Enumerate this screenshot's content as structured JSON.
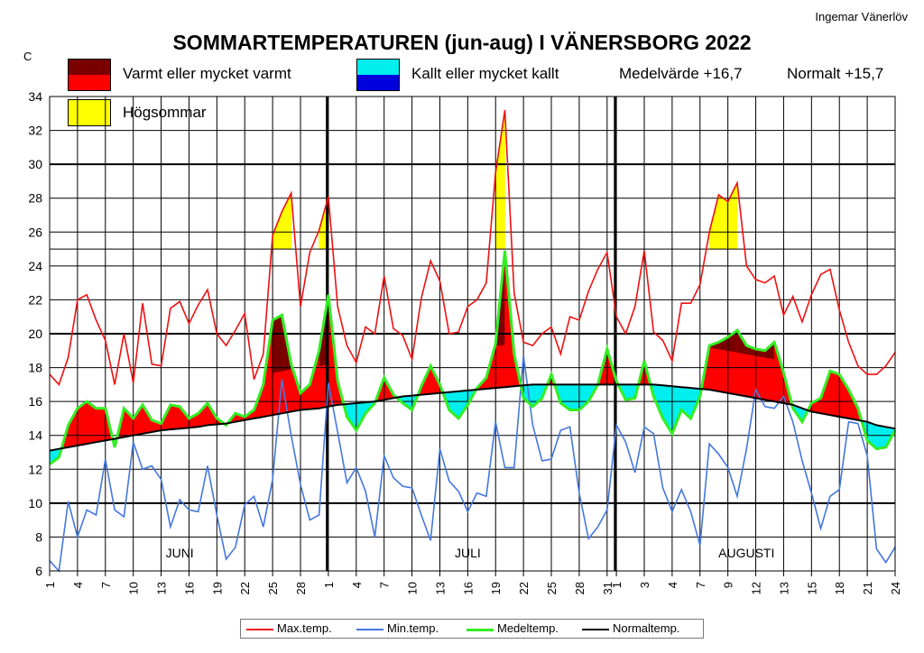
{
  "title": "SOMMARTEMPERATUREN (jun-aug) I VÄNERSBORG 2022",
  "author": "Ingemar Vänerlöv",
  "unit": "C",
  "legend_top": {
    "warm_label": "Varmt eller mycket varmt",
    "cold_label": "Kallt eller mycket kallt",
    "summer_label": "Högsommar",
    "mean_text": "Medelvärde +16,7",
    "normal_text": "Normalt +15,7"
  },
  "legend_bottom": {
    "max": "Max.temp.",
    "min": "Min.temp.",
    "mean": "Medeltemp.",
    "normal": "Normaltemp."
  },
  "colors": {
    "max": "#ee1111",
    "min": "#4477dd",
    "mean": "#33ee22",
    "normal": "#000000",
    "warm": "#ff0000",
    "very_warm": "#7a0000",
    "cold": "#00eeee",
    "very_cold": "#0000dd",
    "summer": "#ffff00"
  },
  "chart_data": {
    "type": "line",
    "ylim": [
      6,
      34
    ],
    "yticks": [
      6,
      8,
      10,
      12,
      14,
      16,
      18,
      20,
      22,
      24,
      26,
      28,
      30,
      32,
      34
    ],
    "days": 92,
    "month_labels": [
      "JUNI",
      "JULI",
      "AUGUSTI"
    ],
    "x_tick_labels": [
      {
        "day": 1,
        "label": "1"
      },
      {
        "day": 4,
        "label": "4"
      },
      {
        "day": 7,
        "label": "7"
      },
      {
        "day": 10,
        "label": "10"
      },
      {
        "day": 13,
        "label": "13"
      },
      {
        "day": 16,
        "label": "16"
      },
      {
        "day": 19,
        "label": "19"
      },
      {
        "day": 22,
        "label": "22"
      },
      {
        "day": 25,
        "label": "25"
      },
      {
        "day": 28,
        "label": "28"
      },
      {
        "day": 31,
        "label": "1"
      },
      {
        "day": 34,
        "label": "4"
      },
      {
        "day": 37,
        "label": "7"
      },
      {
        "day": 40,
        "label": "10"
      },
      {
        "day": 43,
        "label": "13"
      },
      {
        "day": 46,
        "label": "16"
      },
      {
        "day": 49,
        "label": "19"
      },
      {
        "day": 52,
        "label": "22"
      },
      {
        "day": 55,
        "label": "25"
      },
      {
        "day": 58,
        "label": "28"
      },
      {
        "day": 61,
        "label": "31"
      },
      {
        "day": 62,
        "label": "1"
      },
      {
        "day": 65,
        "label": "3"
      },
      {
        "day": 68,
        "label": "4"
      },
      {
        "day": 71,
        "label": "7"
      },
      {
        "day": 74,
        "label": "9"
      },
      {
        "day": 77,
        "label": "12"
      },
      {
        "day": 80,
        "label": "13"
      },
      {
        "day": 83,
        "label": "15"
      },
      {
        "day": 86,
        "label": "18"
      },
      {
        "day": 89,
        "label": "21"
      },
      {
        "day": 92,
        "label": "24"
      }
    ],
    "series": [
      {
        "name": "Max.temp.",
        "values": [
          17.6,
          17.0,
          18.6,
          22.0,
          22.3,
          20.8,
          19.6,
          17.0,
          20.0,
          17.1,
          21.8,
          18.2,
          18.1,
          21.5,
          21.9,
          20.6,
          21.7,
          22.6,
          20.0,
          19.3,
          20.2,
          21.2,
          17.3,
          18.8,
          25.8,
          27.2,
          28.3,
          21.6,
          24.8,
          26.1,
          28.1,
          21.6,
          19.3,
          18.3,
          20.4,
          20.0,
          23.4,
          20.3,
          19.9,
          18.5,
          22.1,
          24.3,
          23.1,
          20.0,
          20.1,
          21.6,
          22.0,
          23.0,
          29.5,
          33.2,
          22.4,
          19.5,
          19.3,
          20.0,
          20.4,
          18.8,
          21.0,
          20.8,
          22.5,
          23.8,
          24.8,
          21.0,
          20.0,
          21.6,
          24.9,
          20.1,
          19.6,
          18.4,
          21.8,
          21.8,
          22.9,
          26.0,
          28.2,
          27.8,
          28.9,
          24.0,
          23.2,
          23.0,
          23.4,
          21.1,
          22.2,
          20.7,
          22.3,
          23.5,
          23.8,
          21.4,
          19.5,
          18.1,
          17.6,
          17.6,
          18.1,
          18.9
        ]
      },
      {
        "name": "Min.temp.",
        "values": [
          6.6,
          6.0,
          10.1,
          8.0,
          9.6,
          9.3,
          12.6,
          9.6,
          9.2,
          13.6,
          12.0,
          12.2,
          11.4,
          8.6,
          10.2,
          9.6,
          9.5,
          12.2,
          9.3,
          6.7,
          7.4,
          9.9,
          10.4,
          8.6,
          11.4,
          17.3,
          14.0,
          11.1,
          9.0,
          9.3,
          17.1,
          14.2,
          11.2,
          12.1,
          10.7,
          8.0,
          12.8,
          11.5,
          11.0,
          10.9,
          9.3,
          7.8,
          13.2,
          11.3,
          10.7,
          9.5,
          10.6,
          10.4,
          14.8,
          12.1,
          12.1,
          18.7,
          14.6,
          12.5,
          12.6,
          14.3,
          14.5,
          10.6,
          7.9,
          8.6,
          9.6,
          14.6,
          13.6,
          11.8,
          14.5,
          14.1,
          10.9,
          9.5,
          10.8,
          9.5,
          7.5,
          13.5,
          12.9,
          12.1,
          10.4,
          13.2,
          16.7,
          15.7,
          15.6,
          16.3,
          14.8,
          12.5,
          10.6,
          8.5,
          10.4,
          10.8,
          14.8,
          14.7,
          12.8,
          7.3,
          6.5,
          7.4
        ]
      },
      {
        "name": "Medeltemp.",
        "values": [
          12.3,
          12.7,
          14.6,
          15.6,
          16.0,
          15.6,
          15.6,
          13.3,
          15.6,
          15.0,
          15.8,
          14.9,
          14.7,
          15.8,
          15.7,
          15.0,
          15.3,
          15.9,
          15.0,
          14.6,
          15.3,
          15.1,
          15.5,
          17.0,
          20.8,
          21.1,
          18.2,
          16.5,
          17.0,
          19.0,
          22.3,
          17.2,
          15.1,
          14.3,
          15.3,
          15.9,
          17.4,
          16.4,
          15.9,
          15.5,
          16.9,
          18.1,
          17.0,
          15.5,
          15.0,
          15.8,
          16.8,
          17.4,
          19.4,
          24.9,
          18.8,
          16.2,
          15.7,
          16.2,
          17.6,
          15.9,
          15.5,
          15.5,
          16.0,
          17.0,
          19.1,
          17.2,
          16.1,
          16.2,
          18.4,
          16.3,
          15.0,
          14.1,
          15.5,
          15.0,
          16.3,
          19.3,
          19.5,
          19.8,
          20.2,
          19.3,
          19.1,
          19.0,
          19.5,
          17.7,
          15.6,
          14.8,
          15.9,
          16.2,
          17.8,
          17.6,
          16.7,
          15.6,
          13.7,
          13.2,
          13.3,
          14.3
        ]
      },
      {
        "name": "Normaltemp.",
        "values": [
          13.1,
          13.2,
          13.3,
          13.4,
          13.5,
          13.6,
          13.7,
          13.8,
          13.9,
          14.0,
          14.1,
          14.2,
          14.3,
          14.35,
          14.4,
          14.45,
          14.5,
          14.6,
          14.65,
          14.7,
          14.8,
          14.9,
          15.0,
          15.1,
          15.2,
          15.3,
          15.4,
          15.5,
          15.55,
          15.6,
          15.7,
          15.8,
          15.85,
          15.9,
          15.95,
          16.0,
          16.1,
          16.2,
          16.3,
          16.35,
          16.4,
          16.45,
          16.5,
          16.55,
          16.6,
          16.65,
          16.7,
          16.75,
          16.8,
          16.85,
          16.9,
          16.95,
          17.0,
          17.0,
          17.0,
          17.0,
          17.0,
          17.0,
          17.0,
          17.0,
          17.0,
          17.0,
          17.0,
          17.0,
          17.0,
          17.0,
          16.95,
          16.9,
          16.85,
          16.8,
          16.75,
          16.7,
          16.6,
          16.5,
          16.4,
          16.3,
          16.2,
          16.1,
          16.0,
          15.9,
          15.8,
          15.6,
          15.4,
          15.3,
          15.2,
          15.1,
          15.0,
          14.9,
          14.8,
          14.6,
          14.5,
          14.4
        ]
      }
    ]
  }
}
